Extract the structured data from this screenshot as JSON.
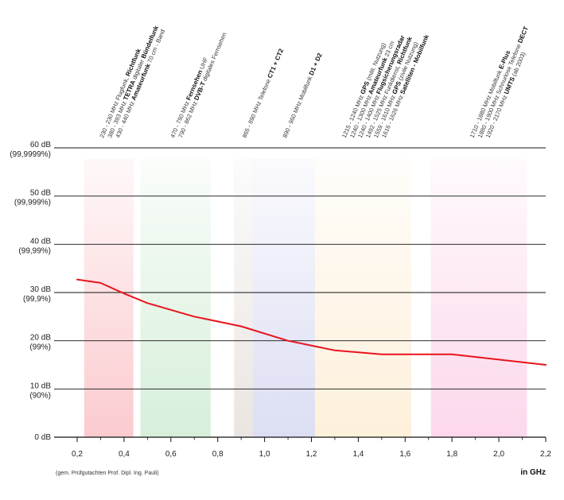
{
  "chart_data": {
    "type": "line",
    "xlabel": "in GHz",
    "footnote": "(gem. Prüfgutachten Prof. Dipl. Ing. Pauli)",
    "xlim": [
      0.0,
      2.2
    ],
    "ylim": [
      0,
      60
    ],
    "x_ticks": [
      {
        "value": 0.2,
        "label": "0,2"
      },
      {
        "value": 0.4,
        "label": "0,4"
      },
      {
        "value": 0.6,
        "label": "0,6"
      },
      {
        "value": 0.8,
        "label": "0,8"
      },
      {
        "value": 1.0,
        "label": "1,0"
      },
      {
        "value": 1.2,
        "label": "1,2"
      },
      {
        "value": 1.4,
        "label": "1,4"
      },
      {
        "value": 1.6,
        "label": "1,6"
      },
      {
        "value": 1.8,
        "label": "1,8"
      },
      {
        "value": 2.0,
        "label": "2,0"
      },
      {
        "value": 2.2,
        "label": "2,2"
      }
    ],
    "y_ticks": [
      {
        "value": 60,
        "db": "60 dB",
        "pct": "(99,9999%)"
      },
      {
        "value": 50,
        "db": "50 dB",
        "pct": "(99,999%)"
      },
      {
        "value": 40,
        "db": "40 dB",
        "pct": "(99,99%)"
      },
      {
        "value": 30,
        "db": "30 dB",
        "pct": "(99,9%)"
      },
      {
        "value": 20,
        "db": "20 dB",
        "pct": "(99%)"
      },
      {
        "value": 10,
        "db": "10 dB",
        "pct": "(90%)"
      },
      {
        "value": 0,
        "db": "0 dB",
        "pct": ""
      }
    ],
    "grid": true,
    "series": [
      {
        "color": "#e8141e",
        "x": [
          0.2,
          0.3,
          0.4,
          0.5,
          0.7,
          0.9,
          1.1,
          1.3,
          1.5,
          1.8,
          2.2
        ],
        "y": [
          32.7,
          32.0,
          29.8,
          27.8,
          25.0,
          23.0,
          20.0,
          18.0,
          17.2,
          17.2,
          15.0
        ]
      }
    ],
    "bands": [
      {
        "x0": 0.23,
        "x1": 0.44,
        "color": "#f7a1a8",
        "labels": [
          [
            {
              "t": "230 - 230 MHz Flugfunk, "
            },
            {
              "t": "Richtfunk",
              "b": true
            }
          ],
          [
            {
              "t": "380 - 393 MHz "
            },
            {
              "t": "TETRA",
              "b": true
            },
            {
              "t": " digitaler "
            },
            {
              "t": "Bündelfunk",
              "b": true
            }
          ],
          [
            {
              "t": "430 - 440 MHz "
            },
            {
              "t": "Amateurfunk",
              "b": true
            },
            {
              "t": " 70 cm - Band"
            }
          ]
        ]
      },
      {
        "x0": 0.47,
        "x1": 0.77,
        "color": "#b7e1bb",
        "labels": [
          [
            {
              "t": "470 - 790 MHz "
            },
            {
              "t": "Fernsehen",
              "b": true
            },
            {
              "t": " UHF"
            }
          ],
          [
            {
              "t": "790 - 862 MHz "
            },
            {
              "t": "DVB-T",
              "b": true
            },
            {
              "t": " digitales Fernsehen"
            }
          ]
        ]
      },
      {
        "x0": 0.87,
        "x1": 0.95,
        "color": "#d9d0c8",
        "labels": [
          [
            {
              "t": "865 - 890 MHz Telefone "
            },
            {
              "t": "CT1 + CT2",
              "b": true
            }
          ]
        ]
      },
      {
        "x0": 0.95,
        "x1": 1.215,
        "color": "#c0c3ea",
        "labels": [
          [
            {
              "t": "890 - 960 MHz  Mobilfunk "
            },
            {
              "t": "D1 + D2",
              "b": true
            }
          ]
        ]
      },
      {
        "x0": 1.215,
        "x1": 1.626,
        "color": "#fde3bd",
        "labels": [
          [
            {
              "t": "1215 - 1240 MHz "
            },
            {
              "t": "GPS",
              "b": true
            },
            {
              "t": " (milit. Nutzung)"
            }
          ],
          [
            {
              "t": "1240 - 1300 MHz "
            },
            {
              "t": "Amateurfunk",
              "b": true
            },
            {
              "t": " 23 cm"
            }
          ],
          [
            {
              "t": "1240 - 1400 MHz "
            },
            {
              "t": "Flugsicherungsradar",
              "b": true
            }
          ],
          [
            {
              "t": "1492 - 1525 MHz Funkdienst, "
            },
            {
              "t": "Richtfunk",
              "b": true
            }
          ],
          [
            {
              "t": "1559 - 1610 MHz "
            },
            {
              "t": "GPS",
              "b": true
            },
            {
              "t": " (zivile Nutzung)"
            }
          ],
          [
            {
              "t": "1616 - 1626 MHz "
            },
            {
              "t": "Satelliten - Mobilfunk",
              "b": true
            }
          ]
        ]
      },
      {
        "x0": 1.71,
        "x1": 2.12,
        "color": "#f9b8dd",
        "labels": [
          [
            {
              "t": "1710 - 1880 MHz Mobilfunk "
            },
            {
              "t": "E-Plus",
              "b": true
            }
          ],
          [
            {
              "t": "1880 - 1900 MHz Schnurlose Telefone "
            },
            {
              "t": "DECT",
              "b": true
            }
          ],
          [
            {
              "t": "1920 - 2170 MHz "
            },
            {
              "t": "UMTS",
              "b": true
            },
            {
              "t": " (ab 2003)"
            }
          ]
        ]
      }
    ]
  }
}
